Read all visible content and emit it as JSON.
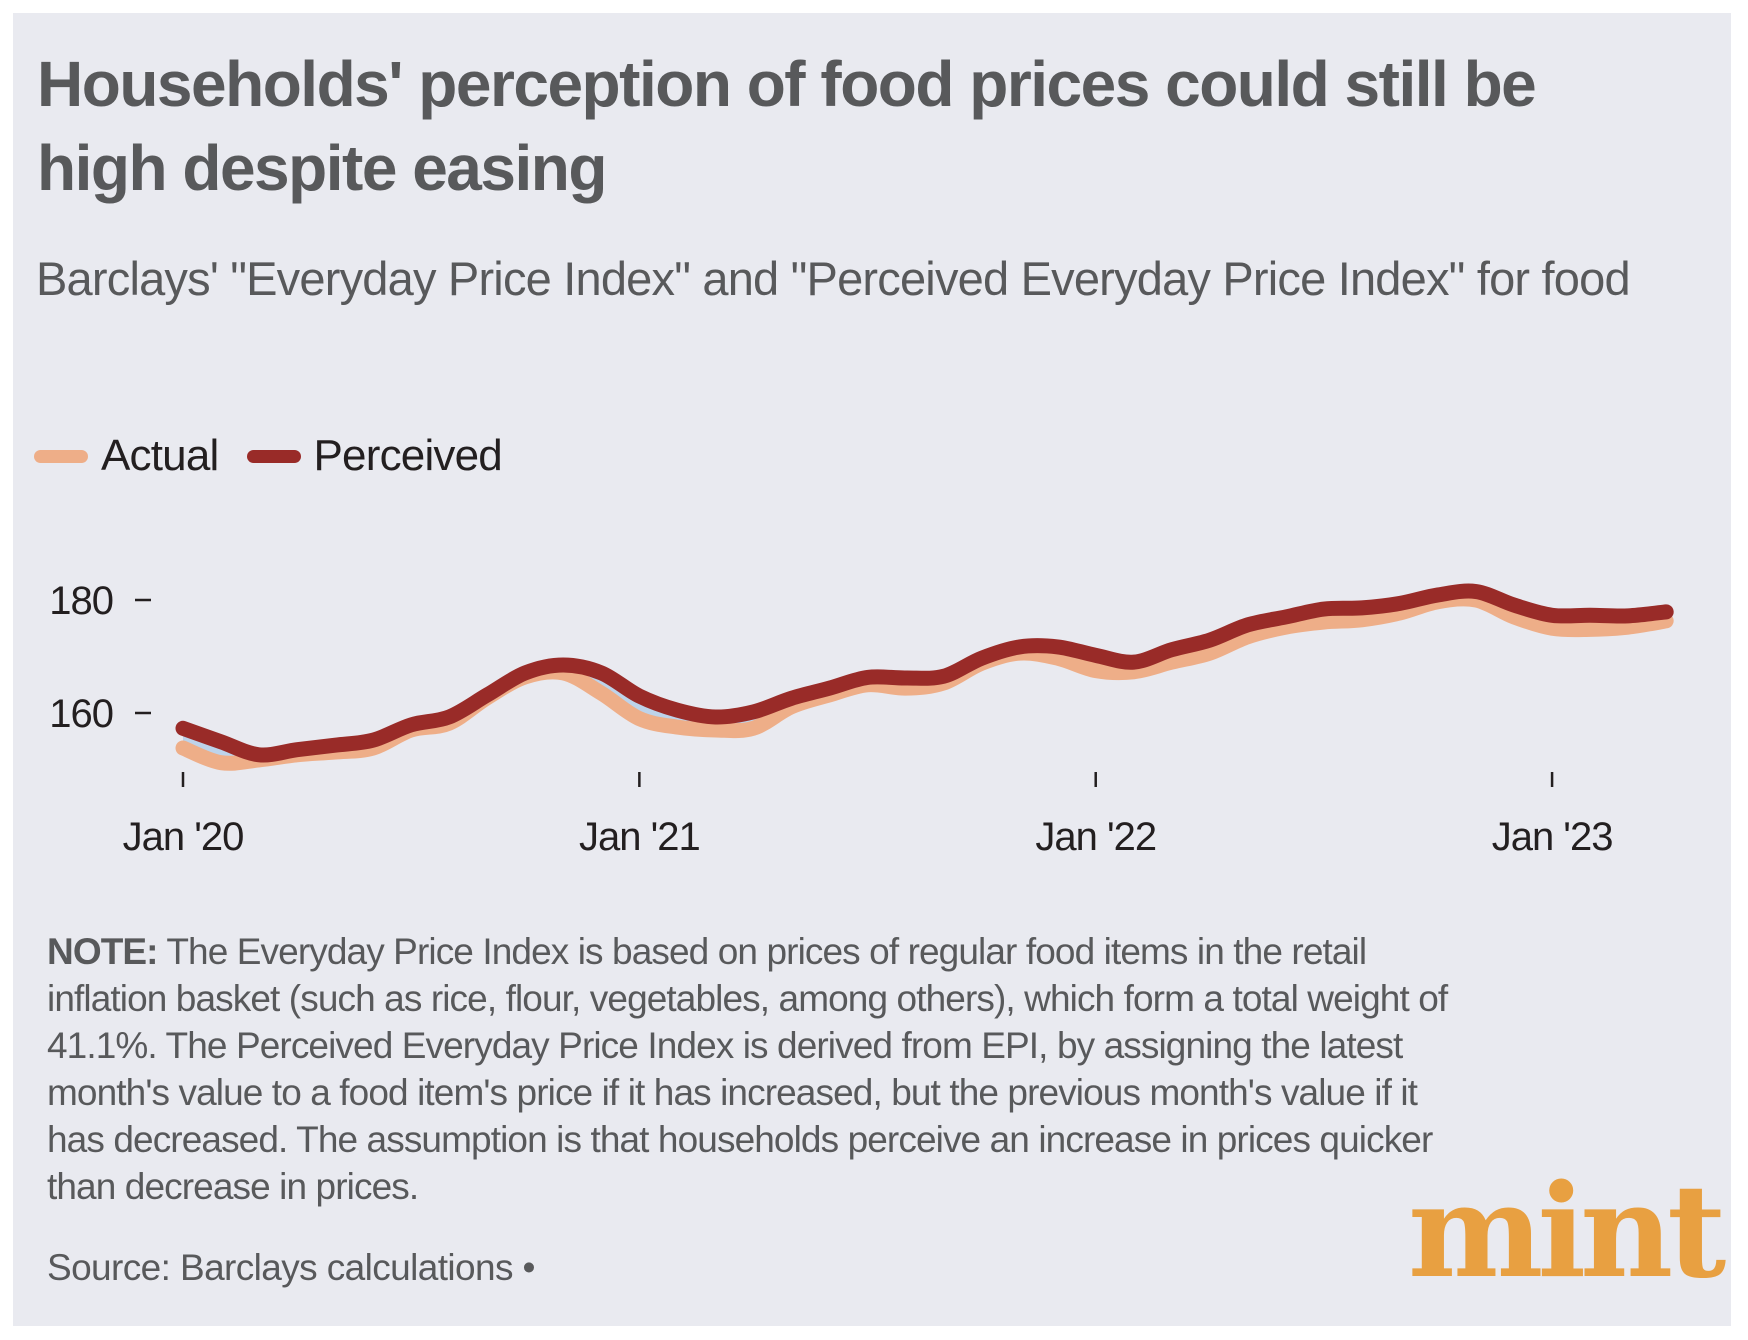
{
  "header": {
    "title": "Households' perception of food prices could still be high despite easing",
    "subtitle": "Barclays' \"Everyday Price Index\" and \"Perceived Everyday Price Index\" for food"
  },
  "legend": [
    {
      "label": "Actual",
      "color": "#EEAE88"
    },
    {
      "label": "Perceived",
      "color": "#992B28"
    }
  ],
  "footer": {
    "note_label": "NOTE:",
    "note_text": " The Everyday Price Index is based on prices of regular food items in the retail inflation basket (such as rice, flour, vegetables, among others), which form a total weight of 41.1%. The Perceived Everyday Price Index is derived from EPI, by assigning the latest month's value to a food item's price if it has increased, but the previous month's value if it has decreased. The assumption is that households perceive an increase in prices quicker than decrease in prices.",
    "source": "Source: Barclays calculations •",
    "brand": "mint",
    "brand_color": "#E8A041"
  },
  "colors": {
    "background": "#E9EAF0",
    "gap_fill": "#BDD3EA",
    "text": "#58595B",
    "axis": "#231F20"
  },
  "chart_data": {
    "type": "line",
    "title": "Households' perception of food prices could still be high despite easing",
    "subtitle": "Barclays' \"Everyday Price Index\" and \"Perceived Everyday Price Index\" for food",
    "xlabel": "",
    "ylabel": "",
    "x_start": "2020-01",
    "x_frequency": "monthly",
    "x": [
      "2020-01",
      "2020-02",
      "2020-03",
      "2020-04",
      "2020-05",
      "2020-06",
      "2020-07",
      "2020-08",
      "2020-09",
      "2020-10",
      "2020-11",
      "2020-12",
      "2021-01",
      "2021-02",
      "2021-03",
      "2021-04",
      "2021-05",
      "2021-06",
      "2021-07",
      "2021-08",
      "2021-09",
      "2021-10",
      "2021-11",
      "2021-12",
      "2022-01",
      "2022-02",
      "2022-03",
      "2022-04",
      "2022-05",
      "2022-06",
      "2022-07",
      "2022-08",
      "2022-09",
      "2022-10",
      "2022-11",
      "2022-12",
      "2023-01",
      "2023-02",
      "2023-03",
      "2023-04"
    ],
    "x_ticks": [
      {
        "index": 0,
        "label": "Jan '20"
      },
      {
        "index": 12,
        "label": "Jan '21"
      },
      {
        "index": 24,
        "label": "Jan '22"
      },
      {
        "index": 36,
        "label": "Jan '23"
      }
    ],
    "y_ticks": [
      160,
      180
    ],
    "ylim": [
      147,
      190
    ],
    "grid": false,
    "legend_position": "top-left",
    "shaded_gap_between_series": true,
    "series": [
      {
        "name": "Actual",
        "color": "#EEAE88",
        "values": [
          153.8,
          151.2,
          151.7,
          152.6,
          153.1,
          153.8,
          157.0,
          158.2,
          162.7,
          166.4,
          167.1,
          163.5,
          159.0,
          157.5,
          157.0,
          157.3,
          161.1,
          163.2,
          165.0,
          164.4,
          165.3,
          168.8,
          170.6,
          169.7,
          167.5,
          167.3,
          169.0,
          170.6,
          173.5,
          175.2,
          176.1,
          176.5,
          177.7,
          179.7,
          180.0,
          177.0,
          175.0,
          174.8,
          175.2,
          176.3
        ]
      },
      {
        "name": "Perceived",
        "color": "#992B28",
        "values": [
          157.3,
          154.9,
          152.6,
          153.5,
          154.3,
          155.2,
          157.9,
          159.3,
          163.2,
          167.1,
          168.5,
          167.1,
          163.0,
          160.5,
          159.3,
          160.2,
          162.6,
          164.4,
          166.3,
          166.2,
          166.5,
          169.7,
          171.7,
          171.7,
          170.2,
          169.0,
          171.2,
          172.9,
          175.6,
          177.0,
          178.4,
          178.6,
          179.4,
          180.9,
          181.5,
          179.1,
          177.3,
          177.3,
          177.2,
          177.9
        ]
      }
    ]
  }
}
